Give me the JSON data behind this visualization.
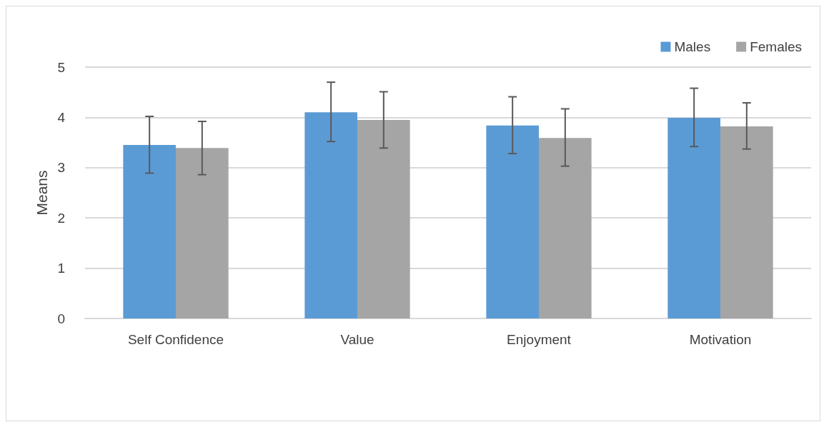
{
  "chart_data": {
    "type": "bar",
    "ylabel": "Means",
    "categories": [
      "Self Confidence",
      "Value",
      "Enjoyment",
      "Motivation"
    ],
    "series": [
      {
        "name": "Males",
        "color": "#5b9bd5",
        "values": [
          3.45,
          4.1,
          3.84,
          3.99
        ],
        "errors": [
          [
            2.89,
            4.02
          ],
          [
            3.52,
            4.7
          ],
          [
            3.28,
            4.41
          ],
          [
            3.42,
            4.58
          ]
        ]
      },
      {
        "name": "Females",
        "color": "#a5a5a5",
        "values": [
          3.39,
          3.95,
          3.59,
          3.82
        ],
        "errors": [
          [
            2.86,
            3.92
          ],
          [
            3.39,
            4.51
          ],
          [
            3.03,
            4.17
          ],
          [
            3.37,
            4.29
          ]
        ]
      }
    ],
    "ylim": [
      0,
      5
    ],
    "yticks": [
      0,
      1,
      2,
      3,
      4,
      5
    ],
    "grid": "y",
    "legend": "top right"
  }
}
